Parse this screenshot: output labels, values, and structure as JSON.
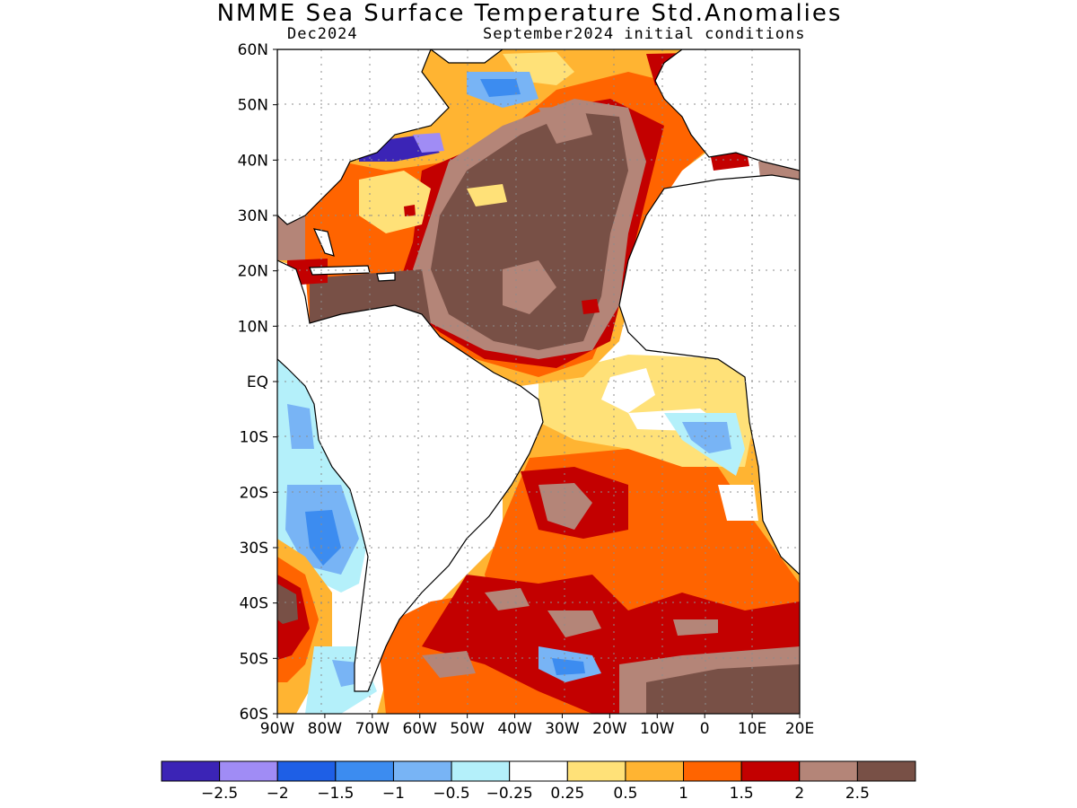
{
  "title": "NMME Sea Surface Temperature Std.Anomalies",
  "valid_month": "Dec2024",
  "init_label": "September2024 initial conditions",
  "lat_ticks": [
    "60N",
    "50N",
    "40N",
    "30N",
    "20N",
    "10N",
    "EQ",
    "10S",
    "20S",
    "30S",
    "40S",
    "50S",
    "60S"
  ],
  "lon_ticks": [
    "90W",
    "80W",
    "70W",
    "60W",
    "50W",
    "40W",
    "30W",
    "20W",
    "10W",
    "0",
    "10E",
    "20E"
  ],
  "colorbar": {
    "colors": [
      "#3b24b6",
      "#a08cf5",
      "#1e5fe6",
      "#3c8cf0",
      "#78b4f5",
      "#b4f0fa",
      "#ffffff",
      "#ffe178",
      "#ffb432",
      "#ff6400",
      "#c30000",
      "#b48578",
      "#785046"
    ],
    "labels": [
      "−2.5",
      "−2",
      "−1.5",
      "−1",
      "−0.5",
      "−0.25",
      "0.25",
      "0.5",
      "1",
      "1.5",
      "2",
      "2.5"
    ]
  },
  "icons": {
    "map": "sea-surface-temperature-anomaly-map",
    "colorbar": "anomaly-colorbar"
  }
}
